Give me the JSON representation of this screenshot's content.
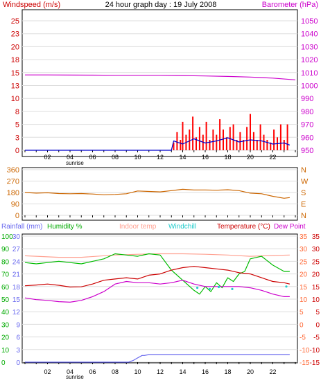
{
  "colors": {
    "wind_speed": "#ff0000",
    "wind_avg": "#0000cc",
    "barometer": "#cc00cc",
    "wind_dir": "#cc6600",
    "rainfall": "#6666ee",
    "humidity": "#00bb00",
    "indoor_temp": "#ffa090",
    "windchill": "#22cccc",
    "temperature": "#cc0000",
    "dew_point": "#cc00cc",
    "right_axis": "#ff6633",
    "grid": "#dddddd",
    "text_blue": "#6666ee"
  },
  "chart_data": [
    {
      "type": "line",
      "title": "24 hour graph day : 19 July 2008",
      "left_label": "Windspeed (m/s)",
      "right_label": "Barometer (hPa)",
      "x_ticks": [
        "02",
        "04",
        "06",
        "08",
        "10",
        "12",
        "14",
        "16",
        "18",
        "20",
        "22"
      ],
      "x_annotation": "sunrise",
      "xlim": [
        0,
        24
      ],
      "y_left_ticks": [
        "25",
        "23",
        "20",
        "18",
        "15",
        "13",
        "10",
        "8",
        "5",
        "3",
        "0"
      ],
      "y_right_ticks": [
        "1050",
        "1040",
        "1030",
        "1020",
        "1010",
        "1000",
        "990",
        "980",
        "970",
        "960",
        "950"
      ],
      "y_left_range": [
        0,
        25
      ],
      "y_right_range": [
        950,
        1050
      ],
      "series": [
        {
          "key": "barometer",
          "axis": "right",
          "x": [
            0,
            2,
            4,
            6,
            8,
            10,
            12,
            14,
            16,
            18,
            20,
            22,
            24
          ],
          "values": [
            1008.2,
            1008.2,
            1008.1,
            1008.0,
            1007.9,
            1007.9,
            1007.9,
            1007.7,
            1007.4,
            1007.0,
            1006.5,
            1005.7,
            1004.4
          ]
        },
        {
          "key": "wind_speed",
          "axis": "left",
          "x": [
            13.2,
            13.5,
            13.8,
            14.0,
            14.3,
            14.6,
            14.9,
            15.2,
            15.5,
            15.8,
            16.1,
            16.4,
            16.7,
            17.0,
            17.3,
            17.6,
            17.9,
            18.2,
            18.5,
            18.8,
            19.1,
            19.4,
            19.7,
            20.0,
            20.3,
            20.6,
            20.9,
            21.2,
            21.5,
            21.8,
            22.1,
            22.4,
            22.7,
            23.0,
            23.3
          ],
          "values": [
            1.5,
            3.5,
            2.0,
            5.5,
            3.0,
            4.0,
            6.5,
            2.5,
            4.5,
            3.0,
            5.5,
            2.0,
            4.0,
            3.0,
            6.0,
            4.0,
            2.5,
            4.5,
            5.0,
            2.0,
            3.5,
            2.0,
            4.5,
            7.0,
            3.5,
            2.0,
            5.0,
            3.0,
            2.0,
            1.5,
            4.0,
            2.5,
            5.0,
            2.0,
            5.0
          ]
        },
        {
          "key": "wind_avg",
          "axis": "left",
          "x": [
            0,
            13.0,
            13.2,
            14.0,
            15.0,
            16.0,
            17.0,
            18.0,
            19.0,
            20.0,
            21.0,
            22.0,
            23.0,
            23.5
          ],
          "values": [
            0,
            0,
            1.8,
            1.2,
            2.2,
            1.4,
            1.8,
            2.4,
            1.6,
            2.0,
            1.8,
            1.2,
            1.4,
            1.0
          ]
        }
      ]
    },
    {
      "type": "line",
      "xlim": [
        0,
        24
      ],
      "y_left_ticks": [
        "360",
        "270",
        "180",
        "90",
        "0"
      ],
      "y_right_ticks": [
        "N",
        "W",
        "S",
        "E",
        "N"
      ],
      "y_range": [
        0,
        360
      ],
      "series": [
        {
          "key": "wind_dir",
          "x": [
            0,
            1,
            2,
            3,
            4,
            5,
            6,
            7,
            8,
            9,
            10,
            11,
            12,
            13,
            14,
            15,
            16,
            17,
            18,
            19,
            20,
            21,
            22,
            23,
            23.5
          ],
          "values": [
            180,
            175,
            178,
            172,
            170,
            172,
            168,
            162,
            165,
            170,
            192,
            188,
            185,
            195,
            205,
            200,
            200,
            198,
            202,
            195,
            175,
            170,
            150,
            135,
            140
          ]
        }
      ]
    },
    {
      "type": "line",
      "left_labels": [
        "Rainfall (mm)",
        "Humidity %"
      ],
      "center_label": "Indoor temp",
      "windchill_label": "Windchill",
      "right_labels": [
        "Temperature (°C)",
        "Dew Point"
      ],
      "x_ticks": [
        "02",
        "04",
        "06",
        "08",
        "10",
        "12",
        "14",
        "16",
        "18",
        "20",
        "22"
      ],
      "x_annotation": "sunrise",
      "xlim": [
        0,
        24
      ],
      "y_humidity_ticks": [
        "100",
        "90",
        "80",
        "70",
        "60",
        "50",
        "40",
        "30",
        "20",
        "10",
        "0"
      ],
      "y_rain_ticks": [
        "30",
        "27",
        "24",
        "21",
        "18",
        "15",
        "12",
        "9",
        "6",
        "3",
        "0"
      ],
      "y_right_ticks_a": [
        "35",
        "30",
        "25",
        "20",
        "15",
        "10",
        "5",
        "0",
        "-5",
        "-10",
        "-15"
      ],
      "y_right_ticks_b": [
        "35",
        "30",
        "25",
        "20",
        "15",
        "10",
        "5",
        "0",
        "-5",
        "-10",
        "-15"
      ],
      "humidity_range": [
        0,
        100
      ],
      "rain_range": [
        0,
        30
      ],
      "temp_range": [
        -15,
        35
      ],
      "series": [
        {
          "key": "indoor_temp",
          "axis": "temp",
          "x": [
            0,
            3,
            5,
            8,
            10,
            12,
            14,
            16,
            18,
            20,
            22,
            23.5
          ],
          "values": [
            27.2,
            26.6,
            26.6,
            27.5,
            27.8,
            28.0,
            28.0,
            27.8,
            27.5,
            27.0,
            27.3,
            27.5
          ]
        },
        {
          "key": "humidity",
          "axis": "humidity",
          "x": [
            0,
            1,
            2,
            3,
            4,
            5,
            6,
            7,
            8,
            9,
            10,
            11,
            12,
            13,
            14,
            15,
            15.5,
            16,
            16.5,
            17,
            17.5,
            18,
            18.5,
            19,
            19.5,
            20,
            21,
            22,
            23,
            23.5
          ],
          "values": [
            79,
            78,
            79,
            80,
            79,
            78,
            80,
            82,
            86,
            85,
            84,
            86,
            85,
            73,
            65,
            57,
            54,
            60,
            56,
            63,
            59,
            67,
            64,
            70,
            72,
            82,
            84,
            77,
            72,
            72
          ]
        },
        {
          "key": "temperature",
          "axis": "temp",
          "x": [
            0,
            1,
            2,
            3,
            4,
            5,
            6,
            7,
            8,
            9,
            10,
            11,
            12,
            13,
            14,
            15,
            16,
            17,
            18,
            19,
            20,
            21,
            22,
            23,
            23.5
          ],
          "values": [
            15.3,
            15.6,
            16.0,
            15.5,
            14.8,
            14.9,
            16.0,
            17.5,
            18.0,
            18.5,
            18.0,
            19.5,
            20.0,
            21.5,
            22.5,
            23.0,
            22.5,
            22.0,
            21.5,
            20.5,
            20.0,
            18.5,
            17.0,
            16.5,
            16.0
          ]
        },
        {
          "key": "dew_point",
          "axis": "temp",
          "x": [
            0,
            1,
            2,
            3,
            4,
            5,
            6,
            7,
            8,
            9,
            10,
            11,
            12,
            13,
            14,
            15,
            16,
            17,
            18,
            19,
            20,
            21,
            22,
            23,
            23.5
          ],
          "values": [
            10.5,
            9.8,
            9.5,
            9.0,
            8.8,
            9.5,
            11.0,
            13.0,
            16.0,
            17.0,
            16.5,
            16.5,
            16.0,
            16.5,
            17.5,
            16.0,
            15.0,
            15.0,
            15.0,
            15.0,
            14.5,
            13.5,
            12.0,
            11.0,
            11.0
          ]
        },
        {
          "key": "windchill",
          "axis": "temp",
          "x": [
            15.3,
            16.4,
            17.2,
            18.4,
            23.2
          ],
          "values": [
            14.5,
            14.0,
            14.8,
            14.0,
            15.0
          ]
        },
        {
          "key": "rainfall",
          "axis": "rain",
          "x": [
            0,
            9.2,
            9.6,
            10.0,
            10.4,
            10.6,
            11.0,
            23.5
          ],
          "values": [
            0,
            0,
            0.4,
            1.0,
            1.6,
            1.6,
            1.8,
            1.8
          ]
        }
      ]
    }
  ]
}
